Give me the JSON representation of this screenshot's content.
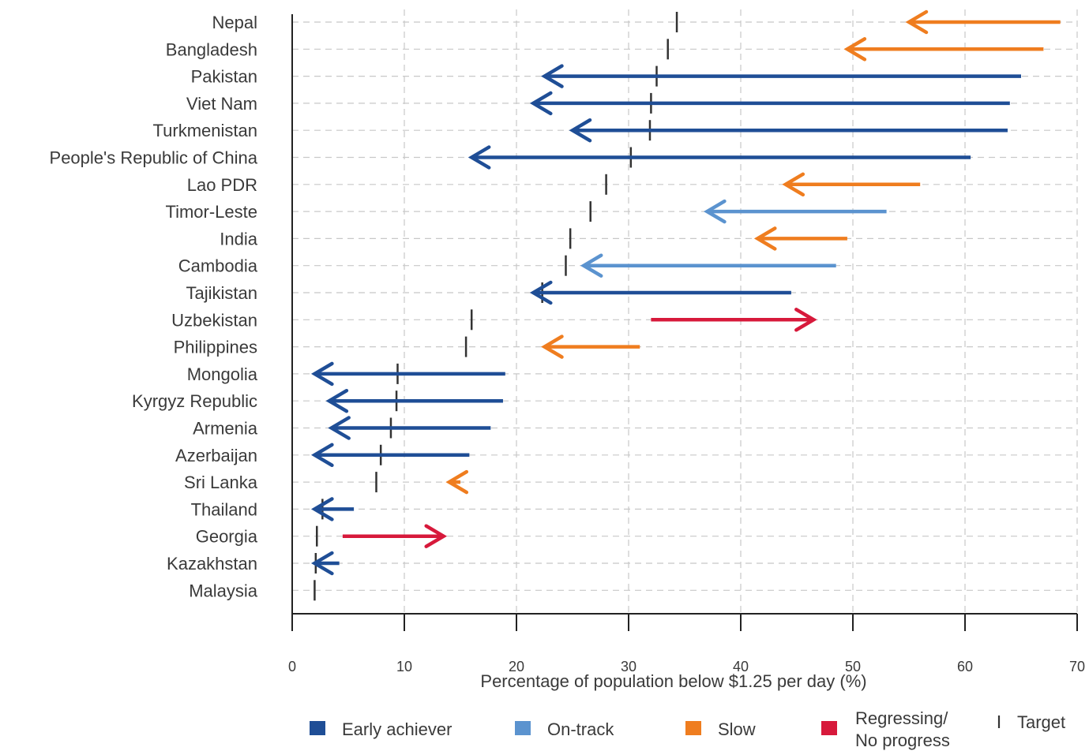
{
  "chart_data": {
    "type": "arrow-range",
    "xlabel": "Percentage of population below $1.25 per day (%)",
    "xlim": [
      0,
      70
    ],
    "xticks": [
      0,
      10,
      20,
      30,
      40,
      50,
      60,
      70
    ],
    "grid": true,
    "legend_position": "bottom",
    "colors": {
      "early": "#1f4e96",
      "ontrack": "#5b93cf",
      "slow": "#ef7d1f",
      "regress": "#d7193b",
      "target": "#333333"
    },
    "legend": [
      {
        "key": "early",
        "label": "Early achiever"
      },
      {
        "key": "ontrack",
        "label": "On-track"
      },
      {
        "key": "slow",
        "label": "Slow"
      },
      {
        "key": "regress",
        "label": "Regressing/",
        "label2": "No progress"
      },
      {
        "key": "target",
        "label": "Target",
        "marker": "I"
      }
    ],
    "rows": [
      {
        "name": "Nepal",
        "start": 68.5,
        "end": 55.0,
        "target": 34.3,
        "status": "slow"
      },
      {
        "name": "Bangladesh",
        "start": 67.0,
        "end": 49.5,
        "target": 33.5,
        "status": "slow"
      },
      {
        "name": "Pakistan",
        "start": 65.0,
        "end": 22.5,
        "target": 32.5,
        "status": "early"
      },
      {
        "name": "Viet Nam",
        "start": 64.0,
        "end": 21.5,
        "target": 32.0,
        "status": "early"
      },
      {
        "name": "Turkmenistan",
        "start": 63.8,
        "end": 25.0,
        "target": 31.9,
        "status": "early"
      },
      {
        "name": "People's Republic of China",
        "start": 60.5,
        "end": 16.0,
        "target": 30.2,
        "status": "early"
      },
      {
        "name": "Lao PDR",
        "start": 56.0,
        "end": 44.0,
        "target": 28.0,
        "status": "slow"
      },
      {
        "name": "Timor-Leste",
        "start": 53.0,
        "end": 37.0,
        "target": 26.6,
        "status": "ontrack"
      },
      {
        "name": "India",
        "start": 49.5,
        "end": 41.5,
        "target": 24.8,
        "status": "slow"
      },
      {
        "name": "Cambodia",
        "start": 48.5,
        "end": 26.0,
        "target": 24.4,
        "status": "ontrack"
      },
      {
        "name": "Tajikistan",
        "start": 44.5,
        "end": 21.5,
        "target": 22.3,
        "status": "early"
      },
      {
        "name": "Uzbekistan",
        "start": 32.0,
        "end": 46.5,
        "target": 16.0,
        "status": "regress"
      },
      {
        "name": "Philippines",
        "start": 31.0,
        "end": 22.5,
        "target": 15.5,
        "status": "slow"
      },
      {
        "name": "Mongolia",
        "start": 19.0,
        "end": 2.0,
        "target": 9.4,
        "status": "early"
      },
      {
        "name": "Kyrgyz Republic",
        "start": 18.8,
        "end": 3.3,
        "target": 9.3,
        "status": "early"
      },
      {
        "name": "Armenia",
        "start": 17.7,
        "end": 3.5,
        "target": 8.8,
        "status": "early"
      },
      {
        "name": "Azerbaijan",
        "start": 15.8,
        "end": 2.0,
        "target": 7.9,
        "status": "early"
      },
      {
        "name": "Sri Lanka",
        "start": 15.0,
        "end": 14.0,
        "target": 7.5,
        "status": "slow"
      },
      {
        "name": "Thailand",
        "start": 5.5,
        "end": 2.0,
        "target": 2.7,
        "status": "early"
      },
      {
        "name": "Georgia",
        "start": 4.5,
        "end": 13.5,
        "target": 2.2,
        "status": "regress"
      },
      {
        "name": "Kazakhstan",
        "start": 4.2,
        "end": 2.0,
        "target": 2.1,
        "status": "early"
      },
      {
        "name": "Malaysia",
        "start": 2.0,
        "end": 2.0,
        "target": 2.0,
        "status": "early"
      }
    ]
  }
}
